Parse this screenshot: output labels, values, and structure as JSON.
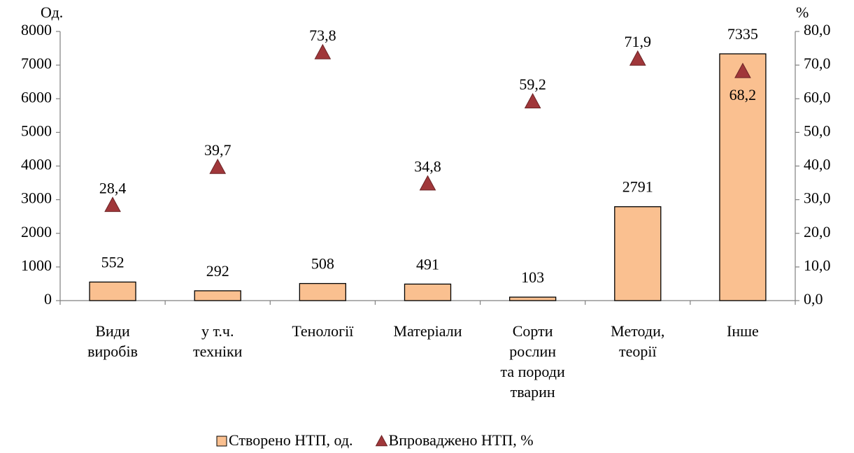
{
  "chart_data": {
    "type": "bar",
    "categories": [
      [
        "Види",
        "виробів"
      ],
      [
        "у т.ч.",
        "техніки"
      ],
      [
        "Тенології"
      ],
      [
        "Матеріали"
      ],
      [
        "Сорти",
        "рослин",
        "та породи",
        "тварин"
      ],
      [
        "Методи,",
        "теорії"
      ],
      [
        "Інше"
      ]
    ],
    "y_label": "Од.",
    "y2_label": "%",
    "ylim": [
      0,
      8000
    ],
    "yticks": [
      0,
      1000,
      2000,
      3000,
      4000,
      5000,
      6000,
      7000,
      8000
    ],
    "y2lim": [
      0,
      80
    ],
    "y2ticks": [
      {
        "value": 0,
        "label": "0,0"
      },
      {
        "value": 10,
        "label": "10,0"
      },
      {
        "value": 20,
        "label": "20,0"
      },
      {
        "value": 30,
        "label": "30,0"
      },
      {
        "value": 40,
        "label": "40,0"
      },
      {
        "value": 50,
        "label": "50,0"
      },
      {
        "value": 60,
        "label": "60,0"
      },
      {
        "value": 70,
        "label": "70,0"
      },
      {
        "value": 80,
        "label": "80,0"
      }
    ],
    "series": [
      {
        "name": "Створено НТП, од.",
        "type": "bar",
        "color": "#fac090",
        "values": [
          552,
          292,
          508,
          491,
          103,
          2791,
          7335
        ]
      },
      {
        "name": "Впроваджено НТП, %",
        "type": "scatter",
        "axis": "y2",
        "color": "#a0373a",
        "marker": "triangle",
        "values": [
          28.4,
          39.7,
          73.8,
          34.8,
          59.2,
          71.9,
          68.2
        ],
        "value_labels": [
          "28,4",
          "39,7",
          "73,8",
          "34,8",
          "59,2",
          "71,9",
          "68,2"
        ]
      }
    ],
    "legend": "bottom"
  }
}
